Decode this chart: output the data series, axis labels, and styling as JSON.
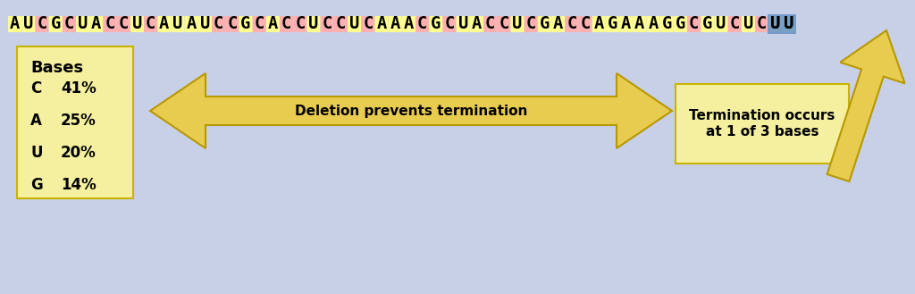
{
  "background_color": "#c8d0e8",
  "sequence": "AUCGCUACCUCAUAUCCGCACCUCCUCAAACGCUACCUCGACCAGAAAGGCGUCUCUU",
  "highlight_box_color": "#6b96c8",
  "bases_box_color": "#f5f0a0",
  "bases_box_edge": "#c8b400",
  "bases_title": "Bases",
  "bases_data": [
    [
      "C",
      "41%"
    ],
    [
      "A",
      "25%"
    ],
    [
      "U",
      "20%"
    ],
    [
      "G",
      "14%"
    ]
  ],
  "arrow_color": "#e8cc50",
  "arrow_edge": "#b89800",
  "arrow_label": "Deletion prevents termination",
  "term_box_color": "#f5f0a0",
  "term_box_edge": "#c8b400",
  "term_label": "Termination occurs\nat 1 of 3 bases",
  "seq_font_size": 13.5,
  "bases_font_size": 12
}
